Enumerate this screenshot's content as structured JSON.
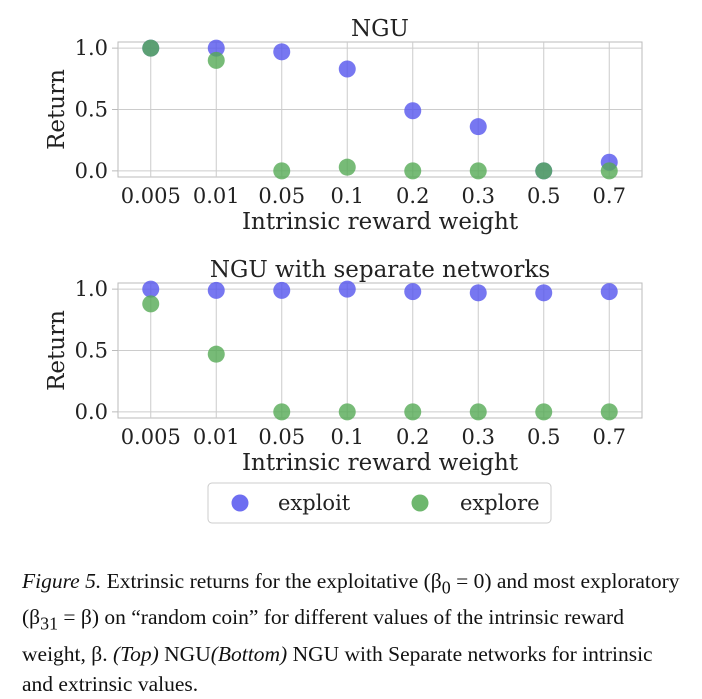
{
  "chart_data": [
    {
      "type": "scatter",
      "title": "NGU",
      "xlabel": "Intrinsic reward weight",
      "ylabel": "Return",
      "categories": [
        "0.005",
        "0.01",
        "0.05",
        "0.1",
        "0.2",
        "0.3",
        "0.5",
        "0.7"
      ],
      "yticks": [
        "0.0",
        "0.5",
        "1.0"
      ],
      "ylim": [
        -0.05,
        1.05
      ],
      "grid": true,
      "series": [
        {
          "name": "exploit",
          "values": [
            1.0,
            1.0,
            0.97,
            0.83,
            0.49,
            0.36,
            0.0,
            0.07
          ]
        },
        {
          "name": "explore",
          "values": [
            1.0,
            0.9,
            0.0,
            0.03,
            0.0,
            0.0,
            0.0,
            0.0
          ]
        }
      ]
    },
    {
      "type": "scatter",
      "title": "NGU with separate networks",
      "xlabel": "Intrinsic reward weight",
      "ylabel": "Return",
      "categories": [
        "0.005",
        "0.01",
        "0.05",
        "0.1",
        "0.2",
        "0.3",
        "0.5",
        "0.7"
      ],
      "yticks": [
        "0.0",
        "0.5",
        "1.0"
      ],
      "ylim": [
        -0.05,
        1.05
      ],
      "grid": true,
      "series": [
        {
          "name": "exploit",
          "values": [
            1.0,
            0.99,
            0.99,
            1.0,
            0.98,
            0.97,
            0.97,
            0.98
          ]
        },
        {
          "name": "explore",
          "values": [
            0.88,
            0.47,
            0.0,
            0.0,
            0.0,
            0.0,
            0.0,
            0.0
          ]
        }
      ]
    }
  ],
  "legend": {
    "items": [
      {
        "label": "exploit",
        "color": "#5555ee"
      },
      {
        "label": "explore",
        "color": "#55aa55"
      }
    ]
  },
  "colors": {
    "exploit": "#5555ee",
    "explore": "#55aa55",
    "grid": "#cccccc",
    "axis": "#bbbbbb"
  },
  "caption": {
    "label": "Figure 5.",
    "text_1": " Extrinsic returns for the exploitative (β",
    "sub_1": "0",
    "text_2": " = 0) and most exploratory (β",
    "sub_2": "31",
    "text_3": " = β) on “random coin” for different values of the intrinsic reward weight, β. ",
    "top": "(Top)",
    "text_4": " NGU",
    "bottom": "(Bottom)",
    "text_5": " NGU with Separate networks for intrinsic and extrinsic values."
  }
}
